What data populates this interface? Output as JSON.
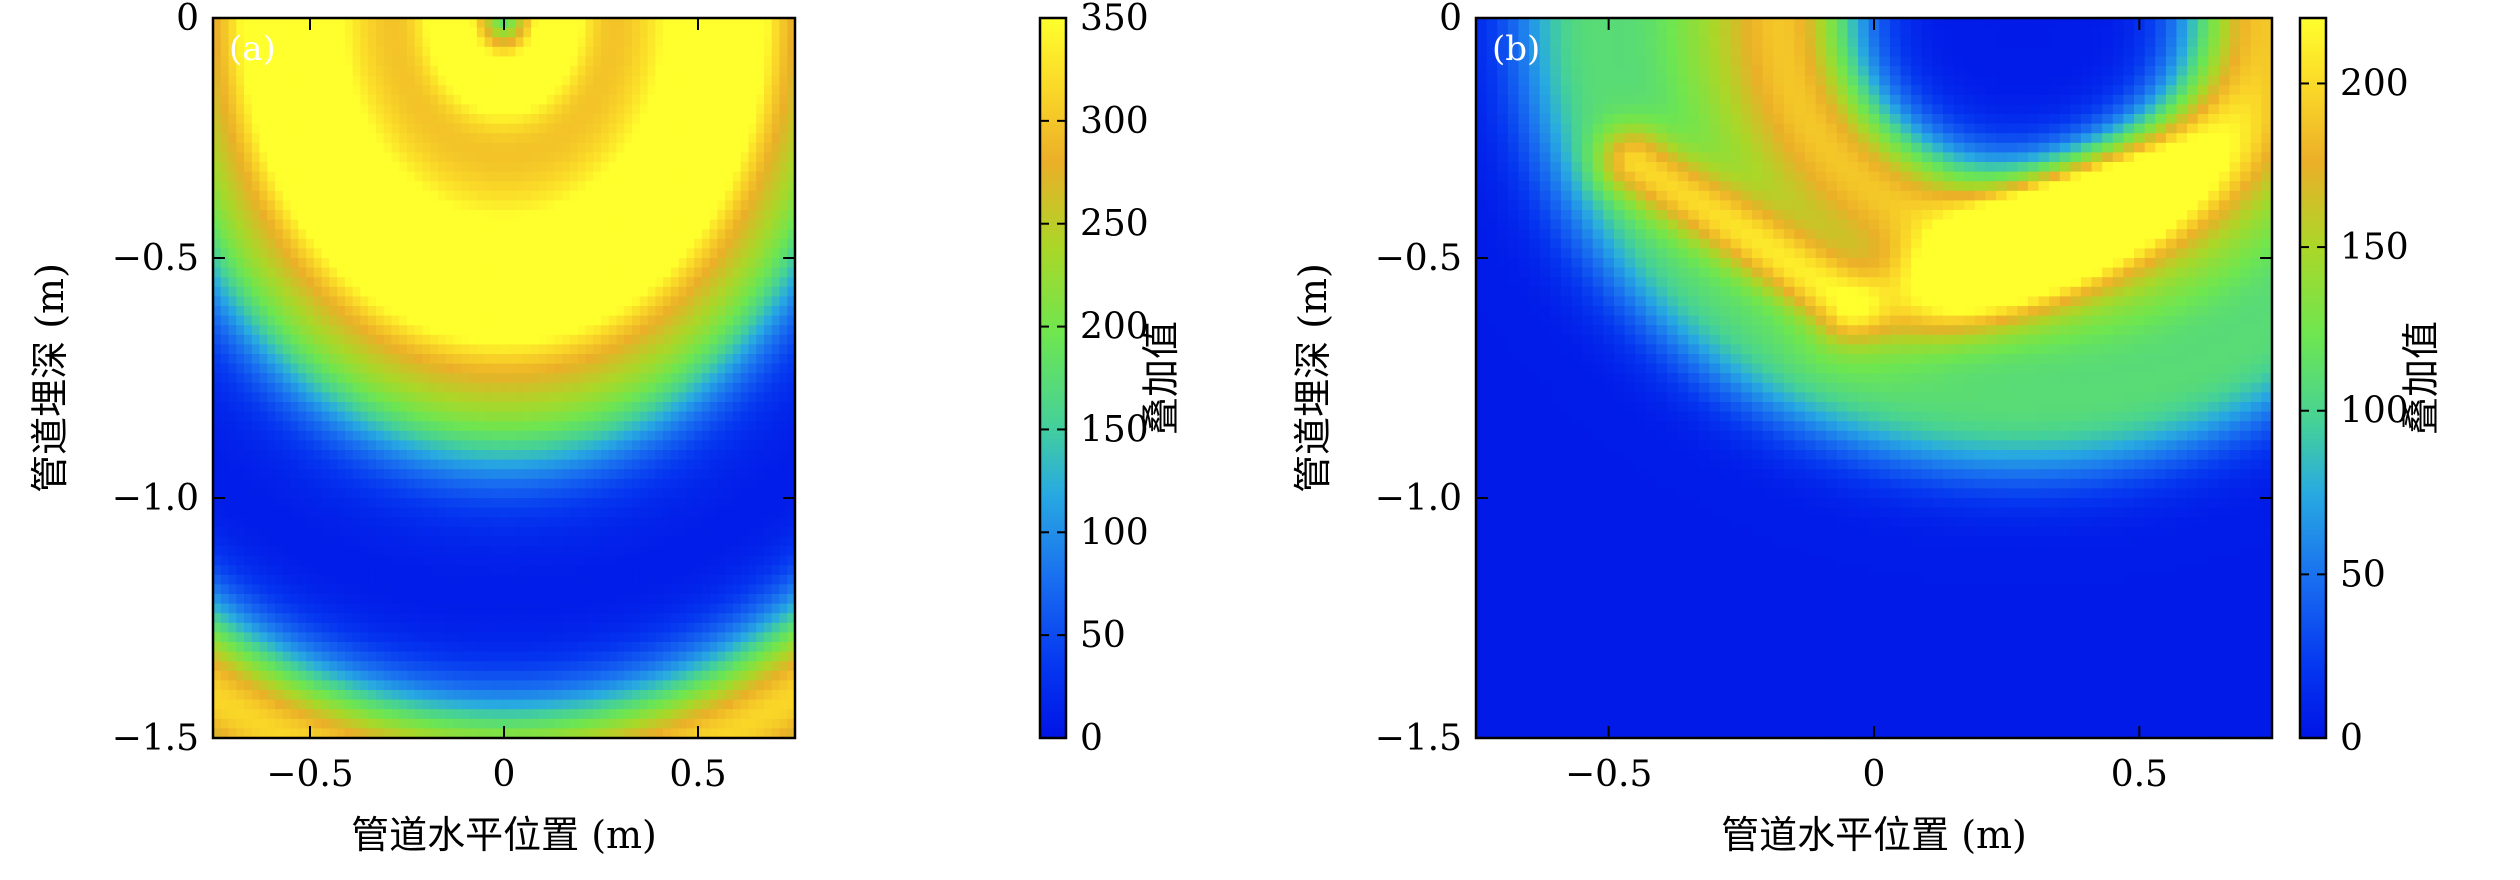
{
  "chart_data": [
    {
      "type": "heatmap",
      "panel_label": "(a)",
      "xlabel": "管道水平位置 (m)",
      "ylabel": "管道埋深 (m)",
      "xlim": [
        -0.75,
        0.75
      ],
      "ylim": [
        -1.5,
        0
      ],
      "xticks": [
        -0.5,
        0,
        0.5
      ],
      "xtick_labels": [
        "−0.5",
        "0",
        "0.5"
      ],
      "yticks": [
        0,
        -0.5,
        -1.0,
        -1.5
      ],
      "ytick_labels": [
        "0",
        "−0.5",
        "−1.0",
        "−1.5"
      ],
      "colorbar": {
        "label": "叠加值",
        "range": [
          0,
          350
        ],
        "ticks": [
          0,
          50,
          100,
          150,
          200,
          250,
          300,
          350
        ],
        "tick_labels": [
          "0",
          "50",
          "100",
          "150",
          "200",
          "250",
          "300",
          "350"
        ]
      },
      "colormap": "jet-like",
      "features": [
        {
          "kind": "ring",
          "center_x": 0.0,
          "center_y": 0.0,
          "radius_m": 0.12,
          "width_m": 0.07,
          "peak_value": 200
        },
        {
          "kind": "ring",
          "center_x": 0.0,
          "center_y": 0.0,
          "radius_m": 0.38,
          "width_m": 0.28,
          "peak_value": 295
        },
        {
          "kind": "ring",
          "center_x": 0.0,
          "center_y": 0.0,
          "radius_m": 0.58,
          "width_m": 0.1,
          "peak_value": 210
        },
        {
          "kind": "ring",
          "center_x": 0.0,
          "center_y": 0.0,
          "radius_m": 0.82,
          "width_m": 0.1,
          "peak_value": 125
        },
        {
          "kind": "ring",
          "center_x": 0.0,
          "center_y": 0.0,
          "radius_m": 1.6,
          "width_m": 0.12,
          "peak_value": 310
        }
      ]
    },
    {
      "type": "heatmap",
      "panel_label": "(b)",
      "xlabel": "管道水平位置 (m)",
      "ylabel": "管道埋深 (m)",
      "xlim": [
        -0.75,
        0.75
      ],
      "ylim": [
        -1.5,
        0
      ],
      "xticks": [
        -0.5,
        0,
        0.5
      ],
      "xtick_labels": [
        "−0.5",
        "0",
        "0.5"
      ],
      "yticks": [
        0,
        -0.5,
        -1.0,
        -1.5
      ],
      "ytick_labels": [
        "0",
        "−0.5",
        "−1.0",
        "−1.5"
      ],
      "colorbar": {
        "label": "叠加值",
        "range": [
          0,
          220
        ],
        "ticks": [
          0,
          50,
          100,
          150,
          200
        ],
        "tick_labels": [
          "0",
          "50",
          "100",
          "150",
          "200"
        ]
      },
      "colormap": "jet-like",
      "features": [
        {
          "kind": "ring",
          "center_x": 0.28,
          "center_y": 0.0,
          "radius_m": 0.42,
          "width_m": 0.09,
          "peak_value": 130
        },
        {
          "kind": "ring",
          "center_x": 0.28,
          "center_y": 0.0,
          "radius_m": 0.6,
          "width_m": 0.13,
          "peak_value": 120
        },
        {
          "kind": "ring",
          "center_x": 0.28,
          "center_y": 0.0,
          "radius_m": 0.85,
          "width_m": 0.09,
          "peak_value": 80
        },
        {
          "kind": "band",
          "from_x": -0.45,
          "from_y": -0.3,
          "to_x": -0.05,
          "to_y": -0.6,
          "peak_value": 90
        },
        {
          "kind": "blob",
          "center_x": 0.33,
          "center_y": -0.45,
          "spread_x": 0.2,
          "spread_y": 0.07,
          "angle_deg": 30,
          "peak_value": 215
        }
      ]
    }
  ]
}
